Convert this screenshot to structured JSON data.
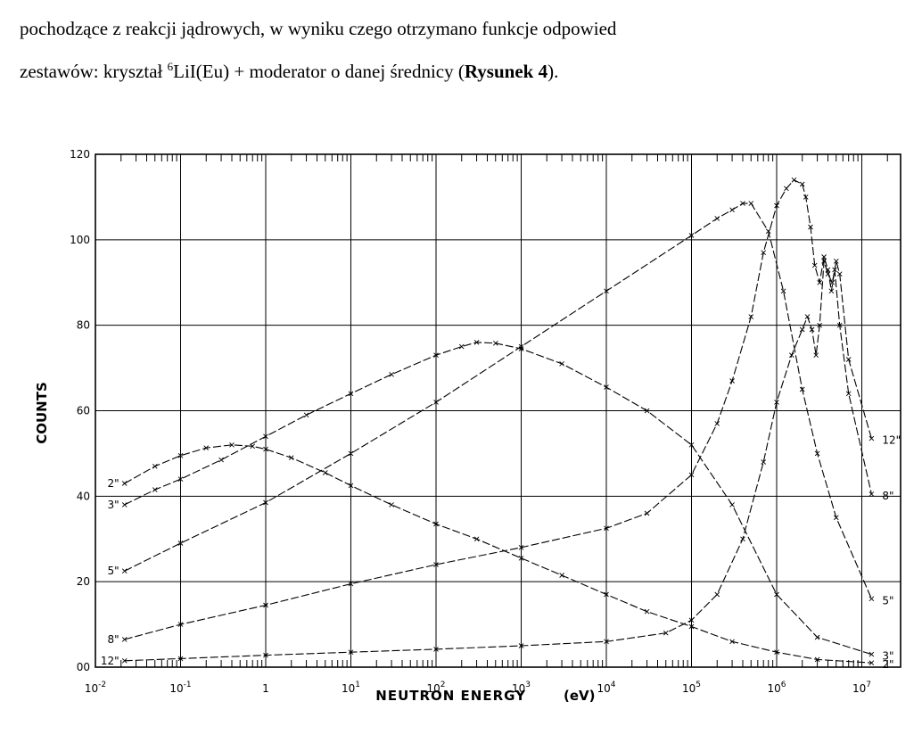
{
  "intro": {
    "line1": "pochodzące z reakcji jądrowych, w wyniku czego otrzymano funkcje odpowied",
    "line2_pre": "zestawów: kryształ ",
    "line2_sup": "6",
    "line2_mid": "LiI(Eu) + moderator o danej średnicy (",
    "line2_bold": "Rysunek 4",
    "line2_post": ")."
  },
  "chart_data": {
    "type": "line",
    "title": "",
    "xlabel": "NEUTRON ENERGY",
    "xunit": "(eV)",
    "ylabel": "COUNTS",
    "xscale": "log",
    "xlim": [
      0.01,
      20000000
    ],
    "ylim": [
      0,
      120
    ],
    "grid": true,
    "x_ticks": [
      {
        "value": 0.01,
        "base": "10",
        "exp": "-2"
      },
      {
        "value": 0.1,
        "base": "10",
        "exp": "-1"
      },
      {
        "value": 1,
        "base": "1",
        "exp": ""
      },
      {
        "value": 10,
        "base": "10",
        "exp": "1"
      },
      {
        "value": 100,
        "base": "10",
        "exp": "2"
      },
      {
        "value": 1000,
        "base": "10",
        "exp": "3"
      },
      {
        "value": 10000,
        "base": "10",
        "exp": "4"
      },
      {
        "value": 100000,
        "base": "10",
        "exp": "5"
      },
      {
        "value": 1000000,
        "base": "10",
        "exp": "6"
      },
      {
        "value": 10000000,
        "base": "10",
        "exp": "7"
      }
    ],
    "y_ticks": [
      {
        "value": 0,
        "label": "00"
      },
      {
        "value": 20,
        "label": "20"
      },
      {
        "value": 40,
        "label": "40"
      },
      {
        "value": 60,
        "label": "60"
      },
      {
        "value": 80,
        "label": "80"
      },
      {
        "value": 100,
        "label": "100"
      },
      {
        "value": 120,
        "label": "120"
      }
    ],
    "series": [
      {
        "name": "2\"",
        "label_side": "left",
        "x": [
          0.022,
          0.05,
          0.1,
          0.2,
          0.4,
          0.7,
          1,
          2,
          5,
          10,
          30,
          100,
          300,
          1000,
          3000,
          10000,
          30000,
          100000,
          300000,
          1000000,
          3000000,
          13000000
        ],
        "values": [
          43,
          47,
          49.5,
          51.3,
          52,
          51.7,
          51,
          49,
          45.5,
          42.5,
          38,
          33.5,
          30,
          25.5,
          21.5,
          17,
          13,
          9.5,
          6,
          3.5,
          1.8,
          1
        ]
      },
      {
        "name": "3\"",
        "label_side": "right",
        "x": [
          0.022,
          0.05,
          0.1,
          0.3,
          1,
          3,
          10,
          30,
          100,
          200,
          300,
          500,
          1000,
          3000,
          10000,
          30000,
          100000,
          300000,
          1000000,
          3000000,
          13000000
        ],
        "values": [
          38,
          41.5,
          44,
          48.5,
          54,
          59,
          64,
          68.5,
          73,
          75,
          76,
          75.8,
          74.5,
          71,
          65.5,
          60,
          52,
          38,
          17,
          7,
          3
        ]
      },
      {
        "name": "5\"",
        "label_side": "right",
        "x": [
          0.022,
          0.1,
          1,
          10,
          100,
          1000,
          10000,
          100000,
          200000,
          300000,
          400000,
          500000,
          800000,
          1200000,
          2000000,
          3000000,
          5000000,
          13000000
        ],
        "values": [
          22.5,
          29,
          38.5,
          50,
          62,
          75,
          88,
          101,
          105,
          107,
          108.5,
          108.5,
          102,
          88,
          65,
          50,
          35,
          16
        ]
      },
      {
        "name": "8\"",
        "label_side": "right",
        "x": [
          0.022,
          0.1,
          1,
          10,
          100,
          1000,
          10000,
          30000,
          100000,
          200000,
          300000,
          500000,
          700000,
          1000000,
          1300000,
          1600000,
          2000000,
          2200000,
          2500000,
          2800000,
          3200000,
          3600000,
          4000000,
          4400000,
          4800000,
          5500000,
          7000000,
          13000000
        ],
        "values": [
          6.5,
          10,
          14.5,
          19.5,
          24,
          28,
          32.5,
          36,
          45,
          57,
          67,
          82,
          97,
          108,
          112,
          114,
          113,
          110,
          103,
          94,
          90,
          96,
          93,
          88,
          93,
          80,
          64,
          40.5
        ]
      },
      {
        "name": "12\"",
        "label_side": "right",
        "x": [
          0.022,
          0.1,
          1,
          10,
          100,
          1000,
          10000,
          50000,
          100000,
          200000,
          400000,
          700000,
          1000000,
          1500000,
          2000000,
          2300000,
          2600000,
          2900000,
          3200000,
          3600000,
          4000000,
          4500000,
          5000000,
          5500000,
          7000000,
          13000000
        ],
        "values": [
          1.5,
          2,
          2.8,
          3.5,
          4.2,
          5,
          6,
          8,
          11,
          17,
          30,
          48,
          62,
          73,
          79,
          82,
          79,
          73,
          80,
          95,
          92,
          90,
          95,
          92,
          72,
          53.5
        ]
      }
    ]
  }
}
